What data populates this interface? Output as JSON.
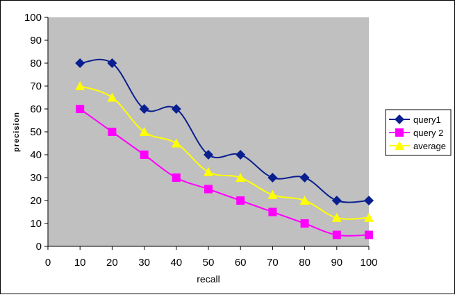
{
  "chart_data": {
    "type": "line",
    "title": "",
    "xlabel": "recall",
    "ylabel": "precision",
    "xlim": [
      0,
      100
    ],
    "ylim": [
      0,
      100
    ],
    "x_ticks": [
      "0",
      "10",
      "20",
      "30",
      "40",
      "50",
      "60",
      "70",
      "80",
      "90",
      "100"
    ],
    "y_ticks": [
      "0",
      "10",
      "20",
      "30",
      "40",
      "50",
      "60",
      "70",
      "80",
      "90",
      "100"
    ],
    "x": [
      10,
      20,
      30,
      40,
      50,
      60,
      70,
      80,
      90,
      100
    ],
    "series": [
      {
        "name": "query1",
        "color": "#0a1f8f",
        "marker": "diamond",
        "values": [
          80,
          80,
          60,
          60,
          40,
          40,
          30,
          30,
          20,
          20
        ]
      },
      {
        "name": "query 2",
        "color": "#ff00ff",
        "marker": "square",
        "values": [
          60,
          50,
          40,
          30,
          25,
          20,
          15,
          10,
          5,
          5
        ]
      },
      {
        "name": "average",
        "color": "#ffff00",
        "marker": "triangle",
        "values": [
          70,
          65,
          50,
          45,
          32.5,
          30,
          22.5,
          20,
          12.5,
          12.5
        ]
      }
    ],
    "grid": false,
    "legend_position": "right",
    "plot_background": "#c0c0c0"
  }
}
